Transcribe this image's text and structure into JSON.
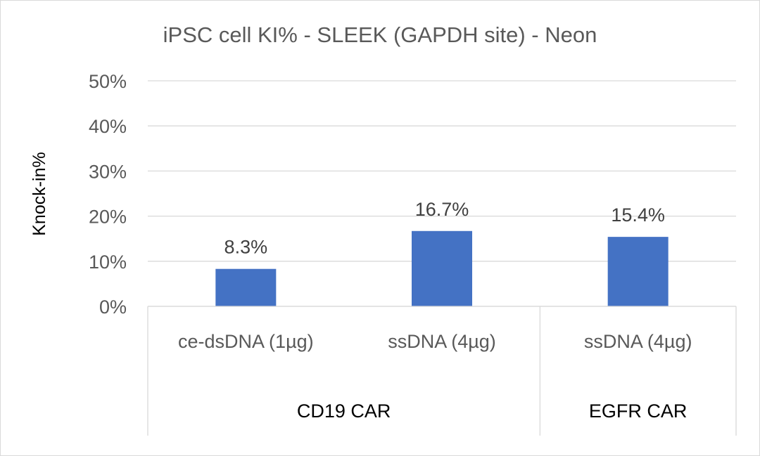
{
  "chart_data": {
    "type": "bar",
    "title": "iPSC cell KI% - SLEEK (GAPDH site) - Neon",
    "xlabel": "",
    "ylabel": "Knock-in%",
    "ylim": [
      0,
      50
    ],
    "yticks": [
      "0%",
      "10%",
      "20%",
      "30%",
      "40%",
      "50%"
    ],
    "grid": true,
    "legend": "none",
    "categories": [
      "ce-dsDNA (1µg)",
      "ssDNA (4µg)",
      "ssDNA (4µg)"
    ],
    "groups": [
      {
        "label": "CD19 CAR",
        "span": 2
      },
      {
        "label": "EGFR CAR",
        "span": 1
      }
    ],
    "values": [
      8.3,
      16.7,
      15.4
    ],
    "data_labels": [
      "8.3%",
      "16.7%",
      "15.4%"
    ],
    "bar_color": "#4472c4"
  }
}
